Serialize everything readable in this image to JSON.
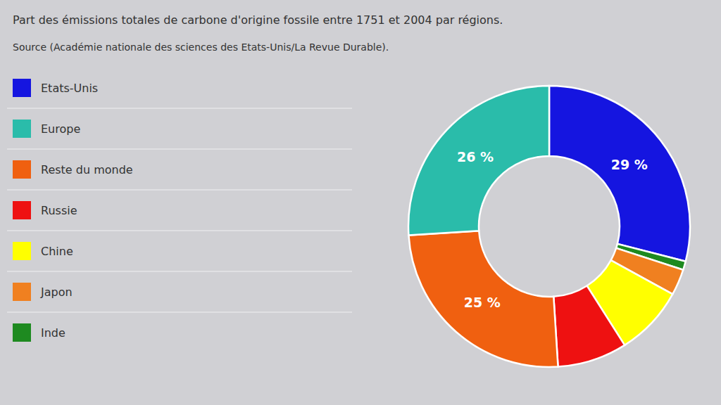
{
  "chart_data": {
    "type": "pie",
    "title": "Part des émissions totales de carbone d'origine fossile entre 1751 et 2004 par régions.",
    "subtitle": "Source (Académie nationale des sciences des Etats-Unis/La Revue Durable).",
    "categories": [
      "Etats-Unis",
      "Inde",
      "Japon",
      "Chine",
      "Russie",
      "Reste du monde",
      "Europe"
    ],
    "values": [
      29,
      1,
      3,
      8,
      8,
      25,
      26
    ],
    "value_labels": [
      "29 %",
      null,
      null,
      null,
      null,
      "25 %",
      "26 %"
    ],
    "data_labels": true,
    "colors": [
      "#1515e0",
      "#1e8a20",
      "#f08020",
      "#ffff00",
      "#ee1111",
      "#f06010",
      "#2abcaa"
    ],
    "legend": "left",
    "legend_labels": [
      "Etats-Unis",
      "Europe",
      "Reste du monde",
      "Russie",
      "Chine",
      "Japon",
      "Inde"
    ],
    "legend_colors": [
      "#1515e0",
      "#2abcaa",
      "#f06010",
      "#ee1111",
      "#ffff00",
      "#f08020",
      "#1e8a20"
    ]
  }
}
